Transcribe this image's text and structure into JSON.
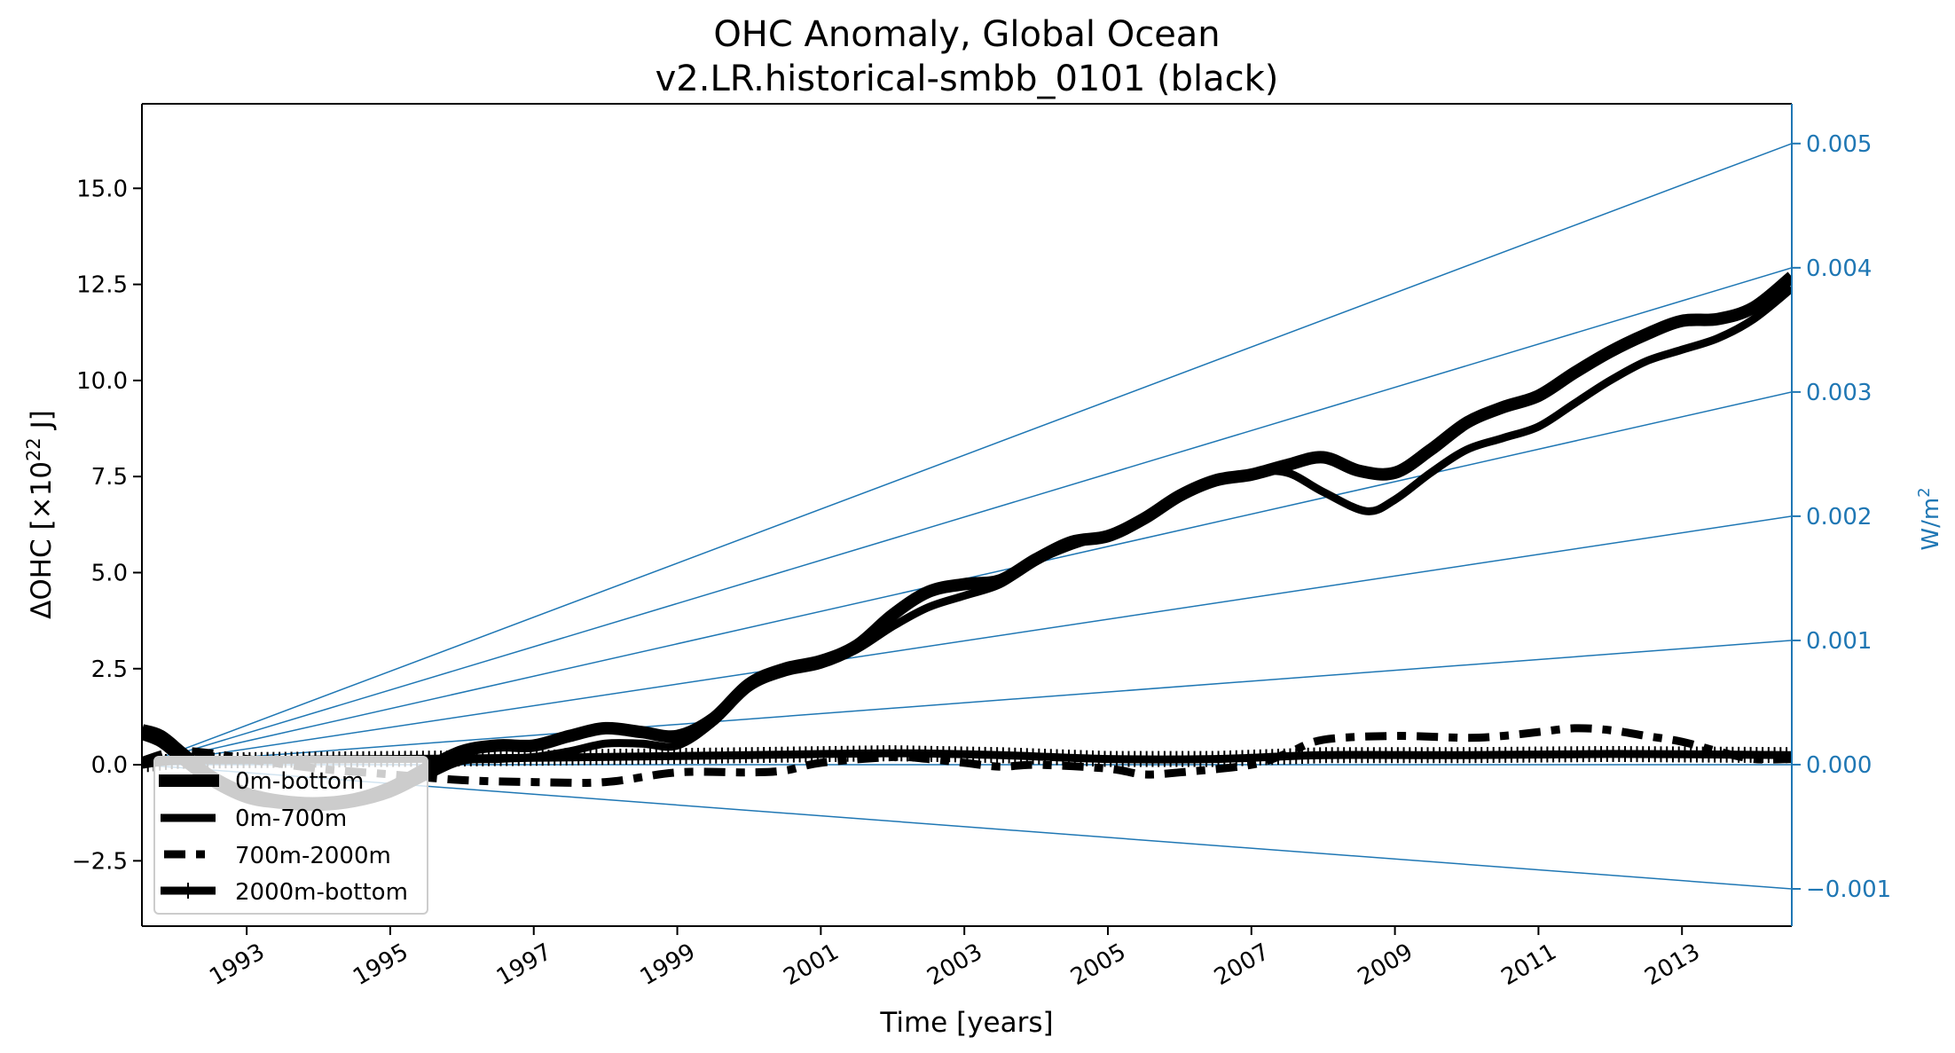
{
  "chart_data": {
    "type": "line",
    "title": "OHC Anomaly, Global Ocean",
    "subtitle": "v2.LR.historical-smbb_0101 (black)",
    "xlabel": "Time [years]",
    "ylabel": "ΔOHC [×10²² J]",
    "ylabel_parts": {
      "main": "ΔOHC [×10",
      "sup": "22",
      "tail": " J]"
    },
    "y2label": "W/m²",
    "y2label_parts": {
      "main": "W/m",
      "sup": "2"
    },
    "xlim": [
      1991.54,
      2014.53
    ],
    "ylim": [
      -4.2,
      17.2
    ],
    "y2lim": [
      -0.0013,
      0.00532
    ],
    "grid": false,
    "legend_position": "lower-left",
    "x_ticks": [
      1993,
      1995,
      1997,
      1999,
      2001,
      2003,
      2005,
      2007,
      2009,
      2011,
      2013
    ],
    "x_tick_labels": [
      "1993",
      "1995",
      "1997",
      "1999",
      "2001",
      "2003",
      "2005",
      "2007",
      "2009",
      "2011",
      "2013"
    ],
    "y_ticks": [
      -2.5,
      0.0,
      2.5,
      5.0,
      7.5,
      10.0,
      12.5,
      15.0
    ],
    "y_tick_labels": [
      "−2.5",
      "0.0",
      "2.5",
      "5.0",
      "7.5",
      "10.0",
      "12.5",
      "15.0"
    ],
    "y2_ticks": [
      -0.001,
      0.0,
      0.001,
      0.002,
      0.003,
      0.004,
      0.005
    ],
    "y2_tick_labels": [
      "−0.001",
      "0.000",
      "0.001",
      "0.002",
      "0.003",
      "0.004",
      "0.005"
    ],
    "reference_color": "#1f77b4",
    "reference_lines_wm2": [
      0.005,
      0.004,
      0.003,
      0.002,
      0.001,
      0.0,
      -0.001
    ],
    "series": [
      {
        "name": "0m-bottom",
        "style": "solid-thick",
        "color": "#000000",
        "x": [
          1991.54,
          1991.8,
          1992.1,
          1992.5,
          1993.0,
          1993.5,
          1994.0,
          1994.5,
          1995.0,
          1995.5,
          1996.0,
          1996.5,
          1997.0,
          1997.5,
          1998.0,
          1998.5,
          1999.0,
          1999.5,
          2000.0,
          2000.5,
          2001.0,
          2001.5,
          2002.0,
          2002.5,
          2003.0,
          2003.5,
          2004.0,
          2004.5,
          2005.0,
          2005.5,
          2006.0,
          2006.5,
          2007.0,
          2007.5,
          2008.0,
          2008.5,
          2009.0,
          2009.5,
          2010.0,
          2010.5,
          2011.0,
          2011.5,
          2012.0,
          2012.5,
          2013.0,
          2013.5,
          2014.0,
          2014.53
        ],
        "values": [
          0.9,
          0.75,
          0.3,
          -0.3,
          -0.75,
          -0.95,
          -1.0,
          -0.9,
          -0.6,
          -0.1,
          0.35,
          0.5,
          0.5,
          0.75,
          0.95,
          0.85,
          0.75,
          1.2,
          2.1,
          2.5,
          2.7,
          3.1,
          3.9,
          4.5,
          4.7,
          4.8,
          5.35,
          5.8,
          5.95,
          6.4,
          7.0,
          7.4,
          7.55,
          7.8,
          8.0,
          7.65,
          7.6,
          8.2,
          8.9,
          9.3,
          9.6,
          10.2,
          10.75,
          11.2,
          11.55,
          11.6,
          11.9,
          12.7
        ]
      },
      {
        "name": "0m-700m",
        "style": "solid",
        "color": "#000000",
        "x": [
          1991.54,
          1991.8,
          1992.1,
          1992.5,
          1993.0,
          1993.5,
          1994.0,
          1994.5,
          1995.0,
          1995.5,
          1996.0,
          1996.5,
          1997.0,
          1997.5,
          1998.0,
          1998.5,
          1999.0,
          1999.5,
          2000.0,
          2000.5,
          2001.0,
          2001.5,
          2002.0,
          2002.5,
          2003.0,
          2003.5,
          2004.0,
          2004.5,
          2005.0,
          2005.5,
          2006.0,
          2006.5,
          2007.0,
          2007.5,
          2008.0,
          2008.6,
          2009.0,
          2009.5,
          2010.0,
          2010.5,
          2011.0,
          2011.5,
          2012.0,
          2012.5,
          2013.0,
          2013.5,
          2014.0,
          2014.53
        ],
        "values": [
          0.75,
          0.55,
          0.1,
          -0.45,
          -0.9,
          -1.05,
          -1.1,
          -1.0,
          -0.75,
          -0.3,
          0.1,
          0.15,
          0.2,
          0.35,
          0.55,
          0.55,
          0.5,
          1.1,
          2.0,
          2.4,
          2.6,
          3.0,
          3.6,
          4.1,
          4.4,
          4.7,
          5.3,
          5.7,
          6.0,
          6.4,
          7.0,
          7.35,
          7.6,
          7.6,
          7.1,
          6.6,
          6.9,
          7.6,
          8.2,
          8.5,
          8.8,
          9.4,
          10.0,
          10.5,
          10.8,
          11.1,
          11.6,
          12.4
        ]
      },
      {
        "name": "700m-2000m",
        "style": "dashed",
        "color": "#000000",
        "x": [
          1991.54,
          1992.0,
          1992.5,
          1993.0,
          1994.0,
          1995.0,
          1996.0,
          1997.0,
          1998.0,
          1999.0,
          2000.0,
          2000.5,
          2001.0,
          2002.0,
          2002.5,
          2003.0,
          2003.5,
          2004.0,
          2005.0,
          2005.5,
          2006.0,
          2007.0,
          2007.5,
          2008.0,
          2009.0,
          2010.0,
          2010.5,
          2011.0,
          2011.5,
          2012.0,
          2012.5,
          2013.0,
          2013.5,
          2014.0,
          2014.53
        ],
        "values": [
          0.1,
          0.35,
          0.3,
          0.15,
          -0.1,
          -0.25,
          -0.4,
          -0.45,
          -0.45,
          -0.2,
          -0.2,
          -0.15,
          0.05,
          0.2,
          0.15,
          0.05,
          -0.05,
          0.0,
          -0.1,
          -0.25,
          -0.2,
          0.0,
          0.3,
          0.65,
          0.75,
          0.7,
          0.75,
          0.85,
          0.95,
          0.9,
          0.75,
          0.6,
          0.35,
          0.15,
          0.15
        ]
      },
      {
        "name": "2000m-bottom",
        "style": "solid-tick-markers",
        "color": "#000000",
        "x": [
          1991.54,
          1992.0,
          1993.0,
          1995.0,
          1997.0,
          2000.0,
          2002.0,
          2003.5,
          2005.0,
          2006.5,
          2008.0,
          2010.0,
          2012.0,
          2014.53
        ],
        "values": [
          0.0,
          0.1,
          0.12,
          0.15,
          0.18,
          0.25,
          0.3,
          0.25,
          0.15,
          0.15,
          0.25,
          0.25,
          0.28,
          0.25
        ]
      }
    ]
  }
}
